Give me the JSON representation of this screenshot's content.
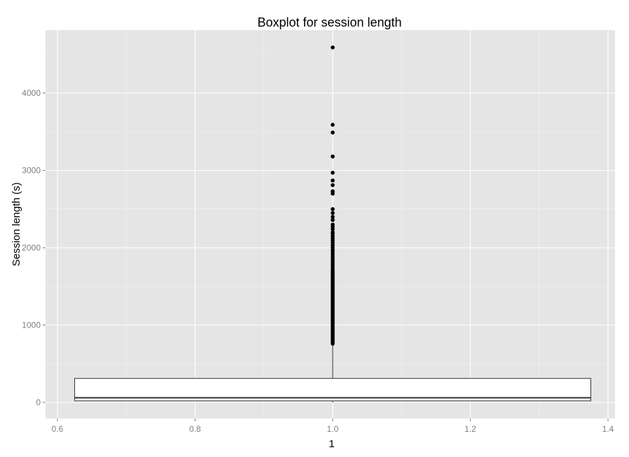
{
  "chart_data": {
    "type": "boxplot",
    "title": "Boxplot for session length",
    "xlabel": "1",
    "ylabel": "Session length (s)",
    "xlim": [
      0.6,
      1.4
    ],
    "ylim": [
      -200,
      4800
    ],
    "x_ticks": [
      0.6,
      0.8,
      1.0,
      1.2,
      1.4
    ],
    "x_tick_labels": [
      "0.6",
      "0.8",
      "1.0",
      "1.2",
      "1.4"
    ],
    "y_ticks": [
      0,
      1000,
      2000,
      3000,
      4000
    ],
    "y_tick_labels": [
      "0",
      "1000",
      "2000",
      "3000",
      "4000"
    ],
    "grid": true,
    "box": {
      "x": 1.0,
      "x_min": 0.625,
      "x_max": 1.375,
      "min": 0,
      "q1": 20,
      "median": 60,
      "q3": 310,
      "whisker_high": 750
    },
    "outliers": [
      4590,
      3590,
      3490,
      3180,
      2970,
      2870,
      2810,
      2730,
      2700,
      2500,
      2450,
      2400,
      2360,
      2300,
      2270,
      2240,
      2200,
      2180,
      2150,
      2120,
      2090,
      2060,
      2030,
      2000,
      1970,
      1940,
      1910,
      1880,
      1850,
      1820,
      1790,
      1760,
      1730,
      1700,
      1680,
      1660,
      1640,
      1620,
      1600,
      1580,
      1560,
      1540,
      1520,
      1500,
      1480,
      1460,
      1440,
      1420,
      1400,
      1380,
      1360,
      1340,
      1320,
      1300,
      1280,
      1260,
      1240,
      1220,
      1200,
      1180,
      1160,
      1140,
      1120,
      1100,
      1080,
      1060,
      1040,
      1020,
      1000,
      980,
      960,
      940,
      920,
      900,
      880,
      860,
      840,
      820,
      800,
      780,
      760
    ]
  },
  "colors": {
    "panel_bg": "#e5e5e5",
    "grid_major": "#ffffff",
    "grid_minor": "#f2f2f2",
    "box_fill": "#ffffff",
    "box_stroke": "#333333",
    "outlier": "#000000"
  }
}
